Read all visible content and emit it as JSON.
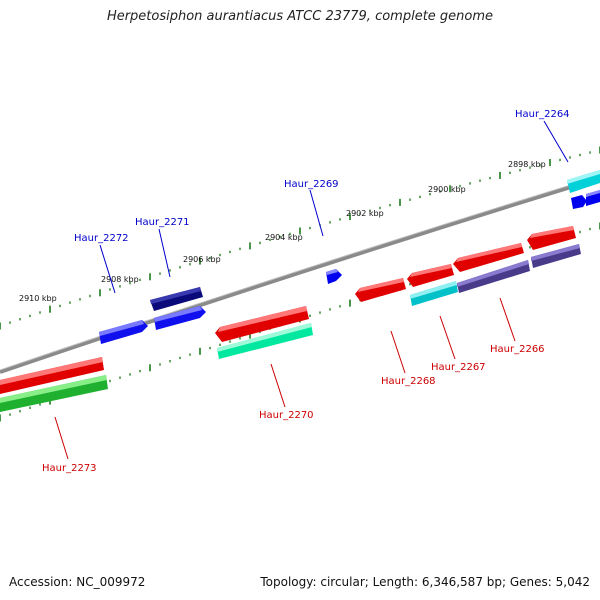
{
  "header": {
    "title": "Herpetosiphon aurantiacus ATCC 23779, complete genome"
  },
  "footer": {
    "accession": "Accession: NC_009972",
    "topology": "Topology: circular; Length: 6,346,587 bp; Genes: 5,042"
  },
  "scale_labels": [
    "2898 kbp",
    "2900 kbp",
    "2902 kbp",
    "2904 kbp",
    "2906 kbp",
    "2908 kbp",
    "2910 kbp"
  ],
  "genes": {
    "forward": [
      {
        "label": "Haur_2264",
        "color": "#0000cc"
      },
      {
        "label": "Haur_2269",
        "color": "#0000cc"
      },
      {
        "label": "Haur_2271",
        "color": "#0000cc"
      },
      {
        "label": "Haur_2272",
        "color": "#0000cc"
      }
    ],
    "reverse": [
      {
        "label": "Haur_2266",
        "color": "#cc0000"
      },
      {
        "label": "Haur_2267",
        "color": "#cc0000"
      },
      {
        "label": "Haur_2268",
        "color": "#cc0000"
      },
      {
        "label": "Haur_2270",
        "color": "#cc0000"
      },
      {
        "label": "Haur_2273",
        "color": "#cc0000"
      }
    ]
  },
  "colors": {
    "backbone": "#888888",
    "forward_label": "#0000cc",
    "reverse_label": "#cc0000",
    "tick": "#1a7a1a"
  }
}
